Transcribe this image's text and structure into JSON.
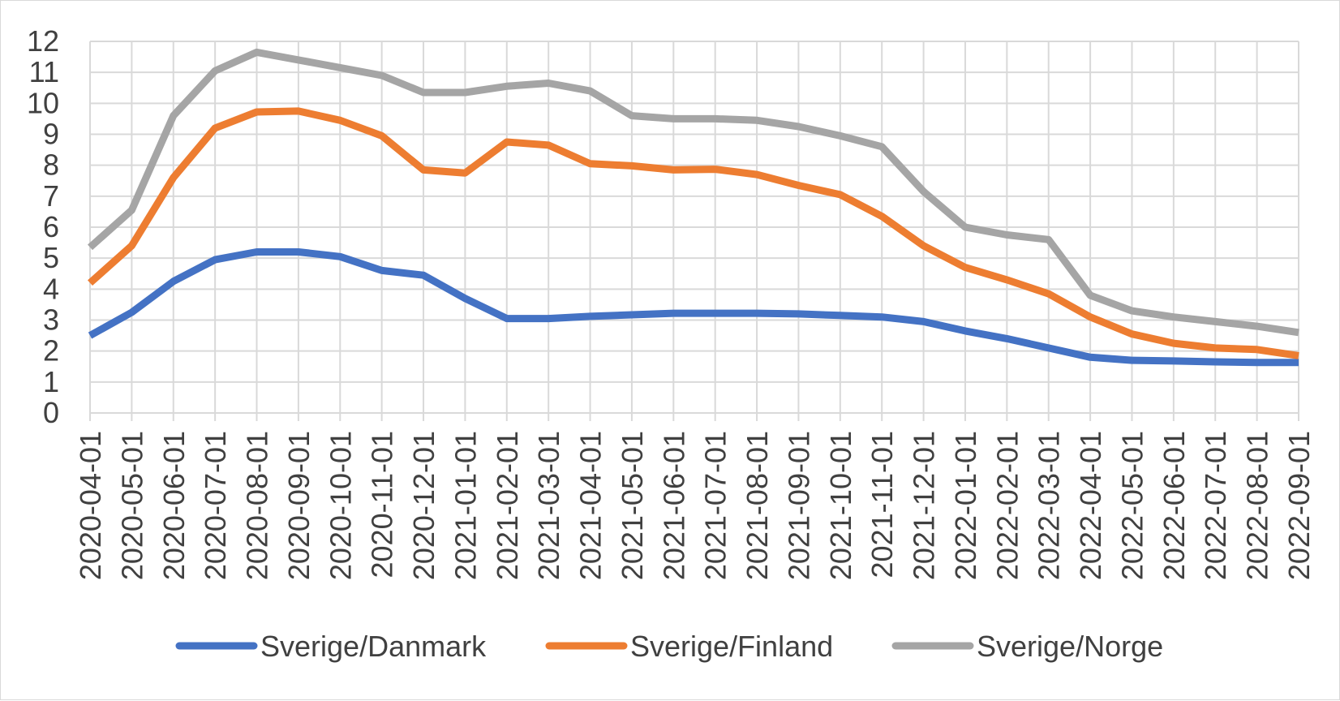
{
  "chart_data": {
    "type": "line",
    "title": "",
    "xlabel": "",
    "ylabel": "",
    "ylim": [
      0,
      12
    ],
    "yticks": [
      0,
      1,
      2,
      3,
      4,
      5,
      6,
      7,
      8,
      9,
      10,
      11,
      12
    ],
    "grid": true,
    "legend_position": "bottom",
    "categories": [
      "2020-04-01",
      "2020-05-01",
      "2020-06-01",
      "2020-07-01",
      "2020-08-01",
      "2020-09-01",
      "2020-10-01",
      "2020-11-01",
      "2020-12-01",
      "2021-01-01",
      "2021-02-01",
      "2021-03-01",
      "2021-04-01",
      "2021-05-01",
      "2021-06-01",
      "2021-07-01",
      "2021-08-01",
      "2021-09-01",
      "2021-10-01",
      "2021-11-01",
      "2021-12-01",
      "2022-01-01",
      "2022-02-01",
      "2022-03-01",
      "2022-04-01",
      "2022-05-01",
      "2022-06-01",
      "2022-07-01",
      "2022-08-01",
      "2022-09-01"
    ],
    "series": [
      {
        "name": "Sverige/Danmark",
        "color": "#4472c4",
        "values": [
          2.5,
          3.25,
          4.25,
          4.95,
          5.2,
          5.2,
          5.05,
          4.6,
          4.45,
          3.7,
          3.05,
          3.05,
          3.12,
          3.17,
          3.22,
          3.22,
          3.22,
          3.2,
          3.15,
          3.1,
          2.95,
          2.65,
          2.4,
          2.1,
          1.8,
          1.7,
          1.68,
          1.65,
          1.63,
          1.63
        ]
      },
      {
        "name": "Sverige/Finland",
        "color": "#ed7d31",
        "values": [
          4.2,
          5.4,
          7.6,
          9.2,
          9.72,
          9.75,
          9.45,
          8.95,
          7.85,
          7.75,
          8.75,
          8.65,
          8.05,
          7.98,
          7.85,
          7.87,
          7.7,
          7.35,
          7.05,
          6.35,
          5.4,
          4.7,
          4.3,
          3.85,
          3.1,
          2.55,
          2.25,
          2.1,
          2.05,
          1.85
        ]
      },
      {
        "name": "Sverige/Norge",
        "color": "#a5a5a5",
        "values": [
          5.35,
          6.55,
          9.6,
          11.05,
          11.65,
          11.4,
          11.15,
          10.9,
          10.35,
          10.35,
          10.55,
          10.65,
          10.4,
          9.6,
          9.5,
          9.5,
          9.45,
          9.25,
          8.95,
          8.6,
          7.15,
          6.0,
          5.75,
          5.6,
          3.8,
          3.3,
          3.1,
          2.95,
          2.8,
          2.6
        ]
      }
    ]
  }
}
